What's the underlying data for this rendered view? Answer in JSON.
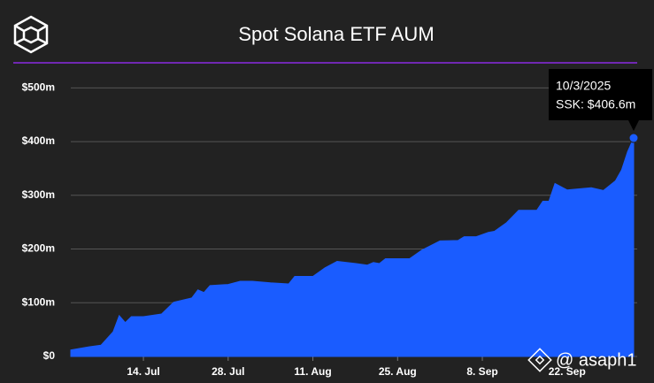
{
  "chart_data": {
    "type": "area",
    "title": "Spot Solana ETF AUM",
    "x": [
      "2025-07-02",
      "2025-07-05",
      "2025-07-07",
      "2025-07-09",
      "2025-07-10",
      "2025-07-11",
      "2025-07-12",
      "2025-07-14",
      "2025-07-17",
      "2025-07-19",
      "2025-07-22",
      "2025-07-23",
      "2025-07-24",
      "2025-07-25",
      "2025-07-28",
      "2025-07-30",
      "2025-08-01",
      "2025-08-04",
      "2025-08-07",
      "2025-08-08",
      "2025-08-11",
      "2025-08-13",
      "2025-08-15",
      "2025-08-18",
      "2025-08-20",
      "2025-08-21",
      "2025-08-22",
      "2025-08-23",
      "2025-08-27",
      "2025-08-29",
      "2025-09-01",
      "2025-09-04",
      "2025-09-05",
      "2025-09-07",
      "2025-09-09",
      "2025-09-10",
      "2025-09-12",
      "2025-09-14",
      "2025-09-17",
      "2025-09-18",
      "2025-09-19",
      "2025-09-20",
      "2025-09-22",
      "2025-09-24",
      "2025-09-26",
      "2025-09-28",
      "2025-09-30",
      "2025-10-01",
      "2025-10-02",
      "2025-10-03"
    ],
    "values": [
      12,
      18,
      21,
      46,
      76,
      63,
      74,
      74,
      79,
      101,
      109,
      124,
      119,
      132,
      134,
      140,
      140,
      137,
      135,
      149,
      149,
      165,
      177,
      173,
      170,
      175,
      173,
      182,
      182,
      198,
      215,
      216,
      223,
      223,
      231,
      233,
      249,
      272,
      272,
      289,
      289,
      322,
      310,
      312,
      314,
      309,
      327,
      347,
      381,
      406.6
    ],
    "color": "#1a5cff",
    "xlim": [
      "2025-07-02",
      "2025-10-03"
    ],
    "xticks": [
      {
        "value": "2025-07-14",
        "label": "14. Jul"
      },
      {
        "value": "2025-07-28",
        "label": "28. Jul"
      },
      {
        "value": "2025-08-11",
        "label": "11. Aug"
      },
      {
        "value": "2025-08-25",
        "label": "25. Aug"
      },
      {
        "value": "2025-09-08",
        "label": "8. Sep"
      },
      {
        "value": "2025-09-22",
        "label": "22. Sep"
      }
    ],
    "ylim": [
      0,
      545
    ],
    "yticks": [
      {
        "value": 0,
        "label": "$0"
      },
      {
        "value": 100,
        "label": "$100m"
      },
      {
        "value": 200,
        "label": "$200m"
      },
      {
        "value": 300,
        "label": "$300m"
      },
      {
        "value": 400,
        "label": "$400m"
      },
      {
        "value": 500,
        "label": "$500m"
      }
    ],
    "grid": true,
    "tooltip_date": "10/3/2025",
    "tooltip_text": "SSK: $406.6m",
    "watermark": "@ asaph1"
  }
}
